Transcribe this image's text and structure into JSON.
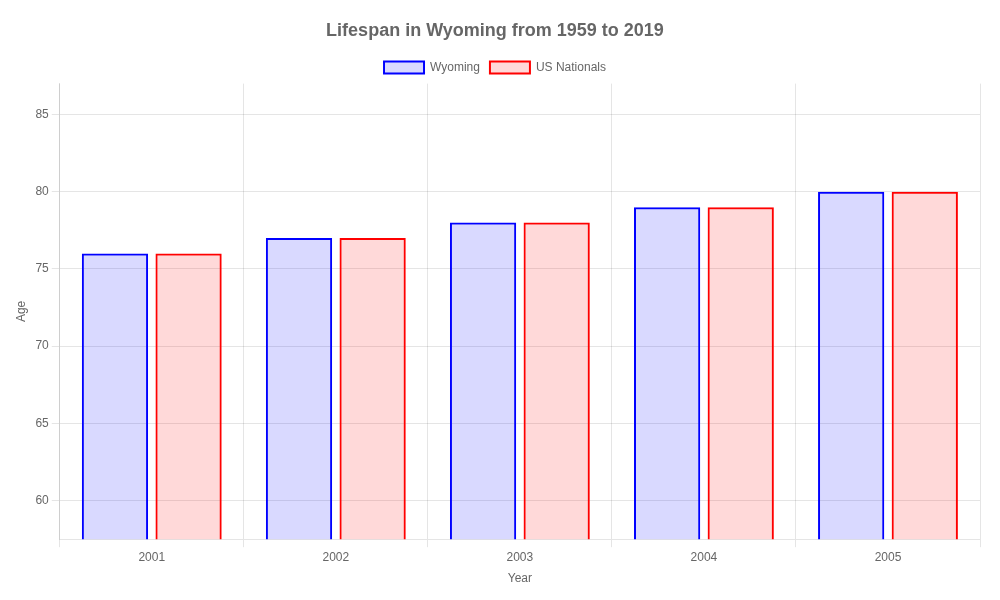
{
  "chart_data": {
    "type": "bar",
    "title": "Lifespan in Wyoming from 1959 to 2019",
    "x_label": "Year",
    "y_label": "Age",
    "categories": [
      "2001",
      "2002",
      "2003",
      "2004",
      "2005"
    ],
    "series": [
      {
        "name": "Wyoming",
        "color": "#0000ff",
        "values": [
          76,
          77,
          78,
          79,
          80
        ]
      },
      {
        "name": "US Nationals",
        "color": "#ff0000",
        "values": [
          76,
          77,
          78,
          79,
          80
        ]
      }
    ],
    "ylim": [
      57.5,
      87
    ],
    "yticks": [
      60,
      65,
      70,
      75,
      80,
      85
    ],
    "grid": true,
    "legend": "top"
  }
}
